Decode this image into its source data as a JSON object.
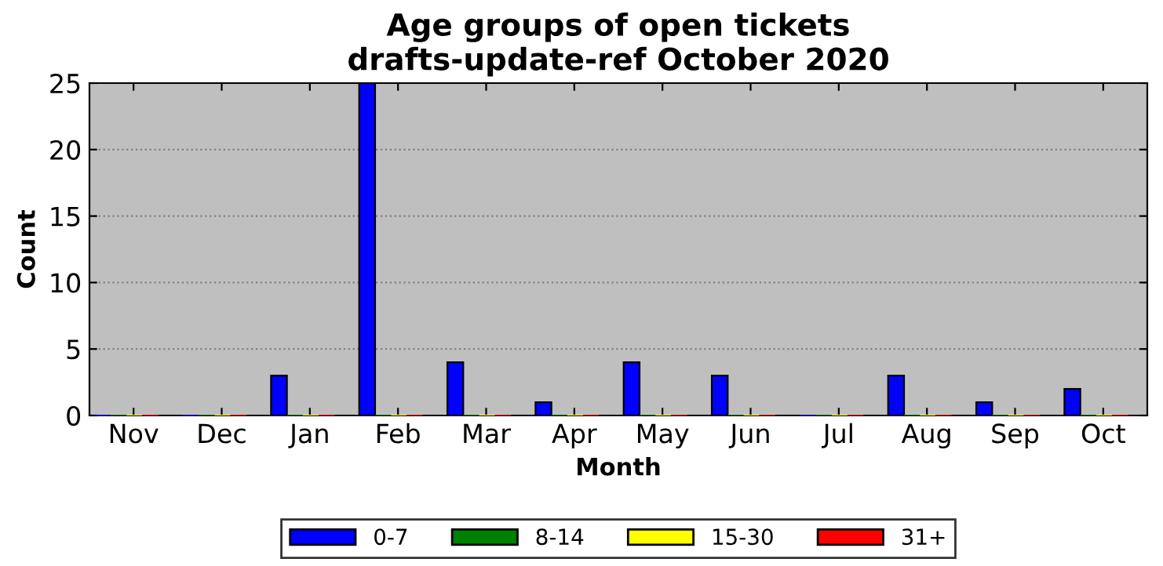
{
  "chart_data": {
    "type": "bar",
    "title": "Age groups of open tickets\ndrafts-update-ref October 2020",
    "xlabel": "Month",
    "ylabel": "Count",
    "categories": [
      "Nov",
      "Dec",
      "Jan",
      "Feb",
      "Mar",
      "Apr",
      "May",
      "Jun",
      "Jul",
      "Aug",
      "Sep",
      "Oct"
    ],
    "series": [
      {
        "name": "0-7",
        "color": "#0000ff",
        "values": [
          0,
          0,
          3,
          25,
          4,
          1,
          4,
          3,
          0,
          3,
          1,
          2
        ]
      },
      {
        "name": "8-14",
        "color": "#008000",
        "values": [
          0,
          0,
          0,
          0,
          0,
          0,
          0,
          0,
          0,
          0,
          0,
          0
        ]
      },
      {
        "name": "15-30",
        "color": "#ffff00",
        "values": [
          0,
          0,
          0,
          0,
          0,
          0,
          0,
          0,
          0,
          0,
          0,
          0
        ]
      },
      {
        "name": "31+",
        "color": "#ff0000",
        "values": [
          0,
          0,
          0,
          0,
          0,
          0,
          0,
          0,
          0,
          0,
          0,
          0
        ]
      }
    ],
    "ylim": [
      0,
      25
    ],
    "yticks": [
      0,
      5,
      10,
      15,
      20,
      25
    ],
    "grid": "y",
    "legend": "bottom"
  }
}
